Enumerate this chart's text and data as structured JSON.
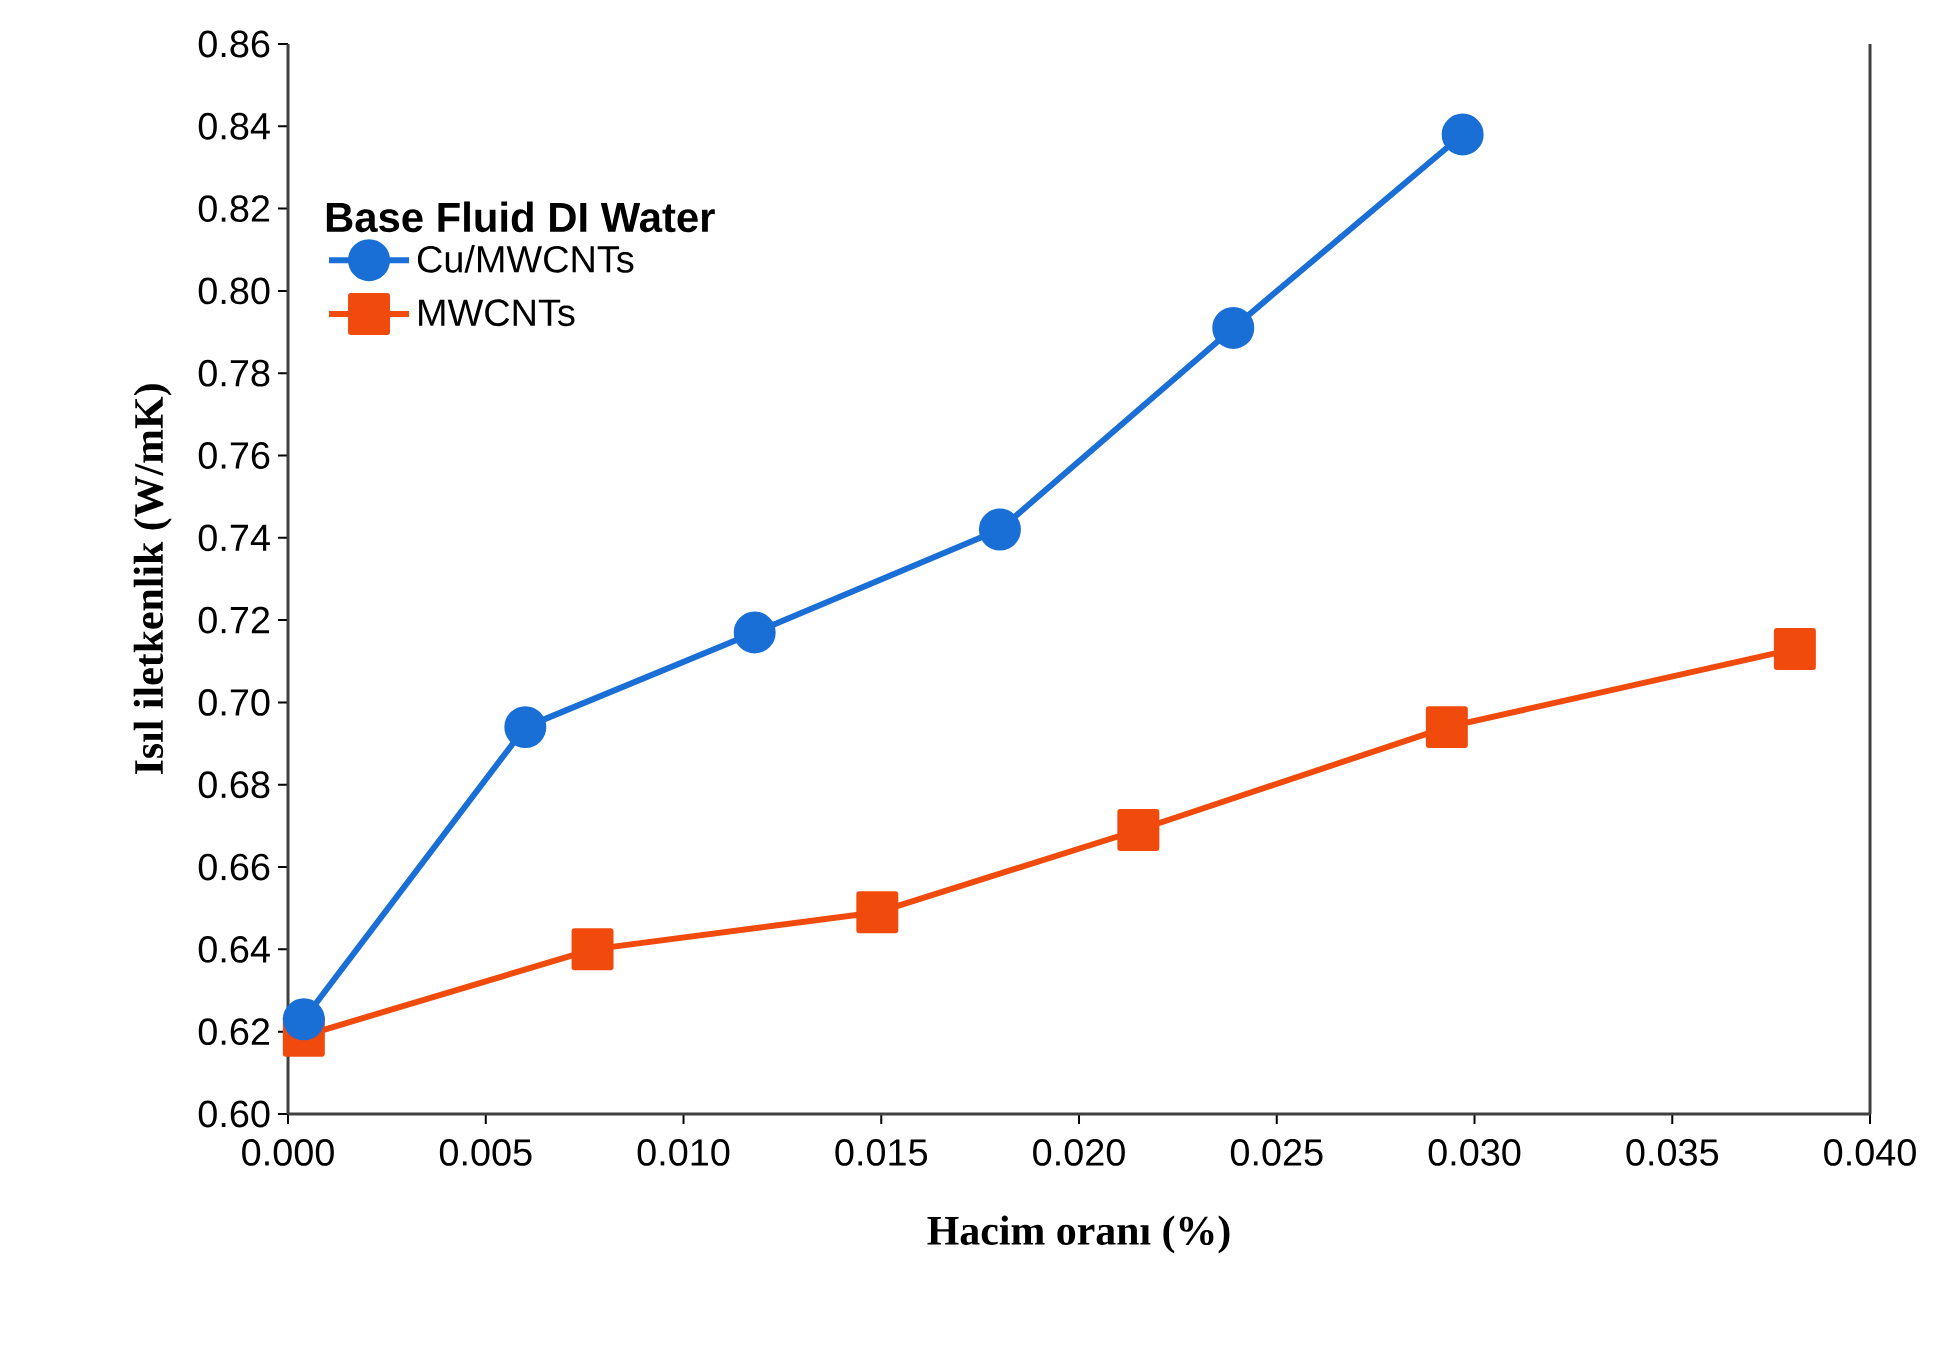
{
  "chart_data": {
    "type": "line",
    "xlabel": "Hacim oranı (%)",
    "ylabel": "Isıl iletkenlik (W/mK)",
    "legend_title": "Base Fluid DI Water",
    "legend": "top left",
    "grid": false,
    "xlim": [
      0,
      0.04
    ],
    "xticks": [
      {
        "value": 0,
        "label": "0.000"
      },
      {
        "value": 0.005,
        "label": "0.005"
      },
      {
        "value": 0.01,
        "label": "0.010"
      },
      {
        "value": 0.015,
        "label": "0.015"
      },
      {
        "value": 0.02,
        "label": "0.020"
      },
      {
        "value": 0.025,
        "label": "0.025"
      },
      {
        "value": 0.03,
        "label": "0.030"
      },
      {
        "value": 0.035,
        "label": "0.035"
      },
      {
        "value": 0.04,
        "label": "0.040"
      }
    ],
    "ylim": [
      0.6,
      0.86
    ],
    "yticks": [
      {
        "value": 0.6,
        "label": "0.60"
      },
      {
        "value": 0.62,
        "label": "0.62"
      },
      {
        "value": 0.64,
        "label": "0.64"
      },
      {
        "value": 0.66,
        "label": "0.66"
      },
      {
        "value": 0.68,
        "label": "0.68"
      },
      {
        "value": 0.7,
        "label": "0.70"
      },
      {
        "value": 0.72,
        "label": "0.72"
      },
      {
        "value": 0.74,
        "label": "0.74"
      },
      {
        "value": 0.76,
        "label": "0.76"
      },
      {
        "value": 0.78,
        "label": "0.78"
      },
      {
        "value": 0.8,
        "label": "0.80"
      },
      {
        "value": 0.82,
        "label": "0.82"
      },
      {
        "value": 0.84,
        "label": "0.84"
      },
      {
        "value": 0.86,
        "label": "0.86"
      }
    ],
    "series": [
      {
        "name": "Cu/MWCNTs",
        "color": "#1a6fd6",
        "marker": "circle",
        "x": [
          0.0004,
          0.006,
          0.0118,
          0.018,
          0.0239,
          0.0297
        ],
        "values": [
          0.623,
          0.694,
          0.717,
          0.742,
          0.791,
          0.838
        ]
      },
      {
        "name": "MWCNTs",
        "color": "#f04a0c",
        "marker": "square",
        "x": [
          0.0004,
          0.0077,
          0.0149,
          0.0215,
          0.0293,
          0.0381
        ],
        "values": [
          0.619,
          0.64,
          0.649,
          0.669,
          0.694,
          0.713
        ]
      }
    ]
  }
}
